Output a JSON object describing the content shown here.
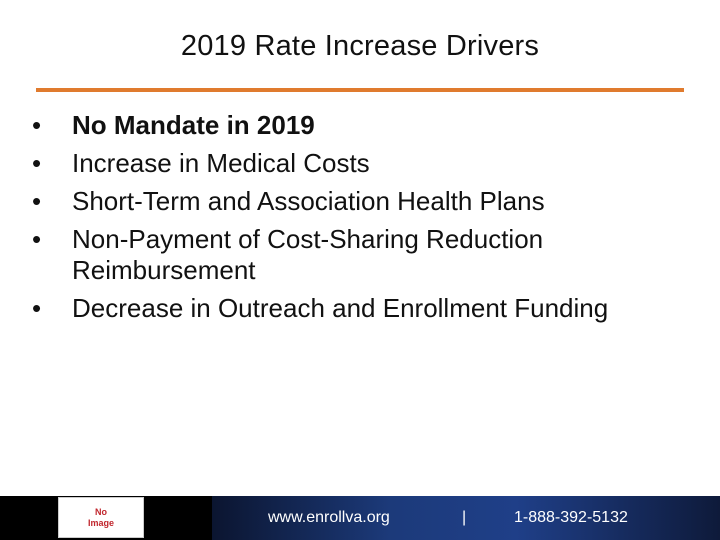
{
  "slide": {
    "title": "2019 Rate Increase Drivers",
    "bullets": [
      {
        "text": "No Mandate in 2019",
        "bold": true
      },
      {
        "text": "Increase in Medical Costs",
        "bold": false
      },
      {
        "text": "Short-Term and Association Health Plans",
        "bold": false
      },
      {
        "text": "Non-Payment of Cost-Sharing Reduction Reimbursement",
        "bold": false
      },
      {
        "text": "Decrease in Outreach and Enrollment Funding",
        "bold": false
      }
    ],
    "bullet_glyph": "•"
  },
  "footer": {
    "image_placeholder": {
      "line1": "No",
      "line2": "Image"
    },
    "url": "www.enrollva.org",
    "separator": "|",
    "phone": "1-888-392-5132"
  },
  "colors": {
    "title_rule": "#e07b2e",
    "footer_band": "#1f3f88"
  }
}
